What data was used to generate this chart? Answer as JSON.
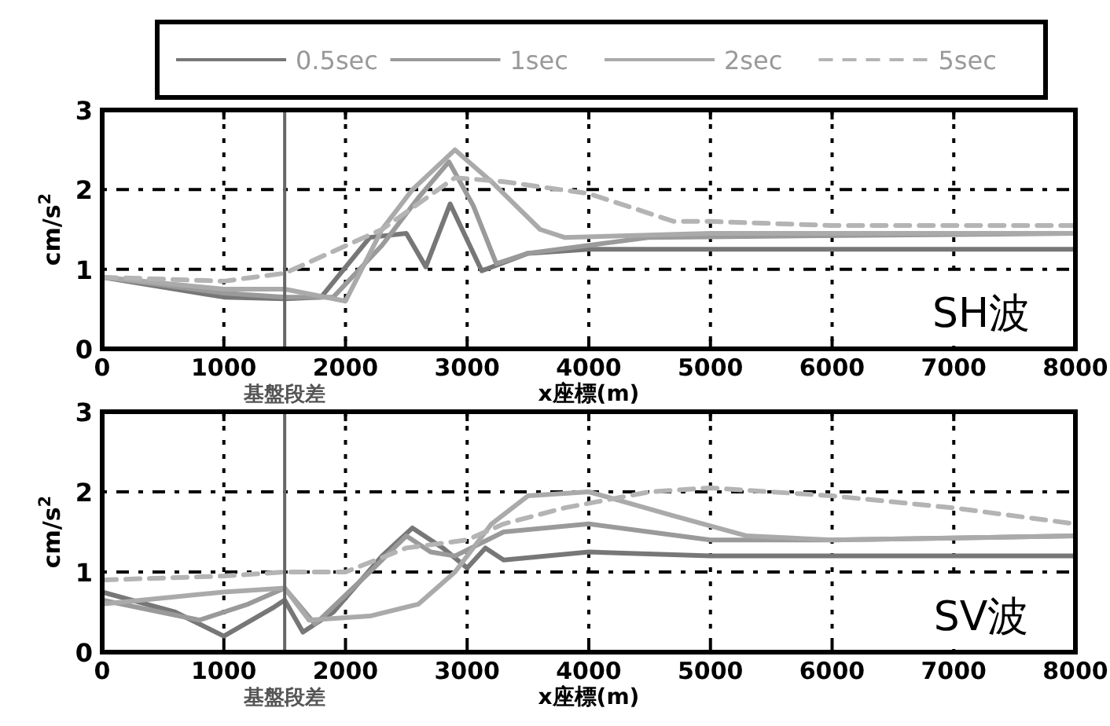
{
  "chart_data": [
    {
      "type": "line",
      "xlabel": "x座標(m)",
      "ylabel": "cm/s$^{2}$",
      "xlim": [
        0,
        8000
      ],
      "ylim": [
        0,
        3
      ],
      "xticks": [
        0,
        1000,
        2000,
        3000,
        4000,
        5000,
        6000,
        7000,
        8000
      ],
      "yticks": [
        0,
        1,
        2,
        3
      ],
      "grid": true,
      "legend": "top",
      "annotations": [
        "SH波"
      ],
      "ref_lines": [
        {
          "axis": "x",
          "value": 1500,
          "label": "基盤段差",
          "color": "#666666"
        }
      ],
      "series": [
        {
          "name": "0.5sec",
          "color": "#777777",
          "line_style": "solid",
          "x": [
            0,
            1000,
            1500,
            1800,
            2200,
            2500,
            2660,
            2860,
            3120,
            3500,
            4000,
            8000
          ],
          "values": [
            0.9,
            0.65,
            0.63,
            0.65,
            1.4,
            1.45,
            1.03,
            1.82,
            0.98,
            1.2,
            1.25,
            1.25
          ]
        },
        {
          "name": "1sec",
          "color": "#9a9a9a",
          "line_style": "solid",
          "x": [
            0,
            1000,
            1500,
            1900,
            2300,
            2600,
            2850,
            3050,
            3240,
            3500,
            4500,
            8000
          ],
          "values": [
            0.9,
            0.7,
            0.65,
            0.65,
            1.3,
            1.9,
            2.35,
            1.8,
            1.07,
            1.2,
            1.4,
            1.45
          ]
        },
        {
          "name": "2sec",
          "color": "#aaaaaa",
          "line_style": "solid",
          "x": [
            0,
            1000,
            1500,
            2000,
            2300,
            2550,
            2900,
            3200,
            3600,
            3800,
            5000,
            8000
          ],
          "values": [
            0.9,
            0.75,
            0.75,
            0.6,
            1.5,
            2.0,
            2.5,
            2.1,
            1.5,
            1.4,
            1.45,
            1.45
          ]
        },
        {
          "name": "5sec",
          "color": "#b4b4b4",
          "line_style": "dashed",
          "x": [
            0,
            1000,
            1500,
            2300,
            2900,
            3300,
            4000,
            4700,
            5000,
            6000,
            8000
          ],
          "values": [
            0.9,
            0.85,
            0.95,
            1.5,
            2.15,
            2.1,
            1.95,
            1.6,
            1.6,
            1.55,
            1.55
          ]
        }
      ]
    },
    {
      "type": "line",
      "xlabel": "x座標(m)",
      "ylabel": "cm/s$^{2}$",
      "xlim": [
        0,
        8000
      ],
      "ylim": [
        0,
        3
      ],
      "xticks": [
        0,
        1000,
        2000,
        3000,
        4000,
        5000,
        6000,
        7000,
        8000
      ],
      "yticks": [
        0,
        1,
        2,
        3
      ],
      "grid": true,
      "annotations": [
        "SV波"
      ],
      "ref_lines": [
        {
          "axis": "x",
          "value": 1500,
          "label": "基盤段差",
          "color": "#666666"
        }
      ],
      "series": [
        {
          "color": "#777777",
          "line_style": "solid",
          "x": [
            0,
            600,
            1000,
            1400,
            1500,
            1650,
            1900,
            2300,
            2550,
            2800,
            3000,
            3150,
            3300,
            4000,
            5000,
            8000
          ],
          "values": [
            0.75,
            0.5,
            0.2,
            0.55,
            0.65,
            0.25,
            0.5,
            1.2,
            1.55,
            1.3,
            1.05,
            1.3,
            1.15,
            1.25,
            1.2,
            1.2
          ]
        },
        {
          "color": "#9a9a9a",
          "line_style": "solid",
          "x": [
            0,
            800,
            1200,
            1500,
            1750,
            2200,
            2500,
            2700,
            2900,
            3300,
            4000,
            5000,
            6000,
            8000
          ],
          "values": [
            0.65,
            0.4,
            0.6,
            0.8,
            0.35,
            1.0,
            1.45,
            1.25,
            1.2,
            1.5,
            1.6,
            1.4,
            1.4,
            1.45
          ]
        },
        {
          "color": "#aaaaaa",
          "line_style": "solid",
          "x": [
            0,
            1000,
            1500,
            1700,
            2200,
            2600,
            2900,
            3200,
            3500,
            4000,
            4700,
            5300,
            6000,
            8000
          ],
          "values": [
            0.6,
            0.75,
            0.8,
            0.4,
            0.45,
            0.6,
            1.0,
            1.6,
            1.95,
            2.0,
            1.7,
            1.45,
            1.4,
            1.45
          ]
        },
        {
          "color": "#b4b4b4",
          "line_style": "dashed",
          "x": [
            0,
            1000,
            1500,
            2000,
            2500,
            3000,
            3300,
            3800,
            4500,
            5000,
            6000,
            7000,
            8000
          ],
          "values": [
            0.9,
            0.95,
            1.0,
            1.0,
            1.3,
            1.4,
            1.6,
            1.8,
            2.0,
            2.05,
            1.95,
            1.8,
            1.6
          ]
        }
      ]
    }
  ]
}
